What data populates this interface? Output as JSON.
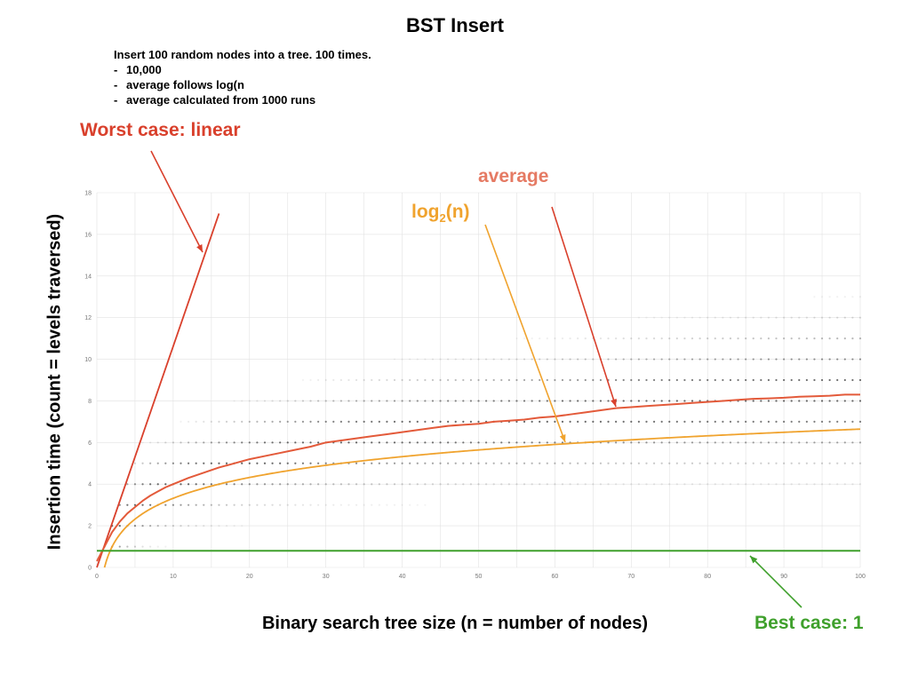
{
  "colors": {
    "linear": "#d9402c",
    "average": "#e35a3a",
    "log": "#f0a32e",
    "best": "#3fa02c",
    "grid": "#e2e2e2",
    "dots": "#333333"
  },
  "header": {
    "title": "BST Insert",
    "intro": "Insert 100 random nodes into a tree. 100 times.",
    "bullets": [
      "10,000",
      "average follows log(n",
      "average calculated from 1000 runs"
    ]
  },
  "annotations": {
    "worst": "Worst case: linear",
    "average": "average",
    "log_base": "log",
    "log_sub": "2",
    "log_arg": "(n)",
    "best": "Best case: 1"
  },
  "chart_data": {
    "type": "line",
    "xlabel": "Binary search tree size (n = number of nodes)",
    "ylabel": "Insertion time (count = levels traversed)",
    "xlim": [
      0,
      100
    ],
    "ylim": [
      0,
      18
    ],
    "xticks": [
      0,
      10,
      20,
      30,
      40,
      50,
      60,
      70,
      80,
      90,
      100
    ],
    "yticks": [
      0,
      2,
      4,
      6,
      8,
      10,
      12,
      14,
      16,
      18
    ],
    "grid": true,
    "series": [
      {
        "key": "linear",
        "x": [
          0,
          16
        ],
        "y": [
          0,
          17
        ]
      },
      {
        "key": "average",
        "x": [
          0,
          1,
          2,
          3,
          4,
          5,
          6,
          7,
          8,
          9,
          10,
          12,
          14,
          16,
          18,
          20,
          22,
          24,
          26,
          28,
          30,
          32,
          34,
          36,
          38,
          40,
          42,
          44,
          46,
          48,
          50,
          52,
          54,
          56,
          58,
          60,
          62,
          64,
          66,
          68,
          70,
          72,
          74,
          76,
          78,
          80,
          82,
          84,
          86,
          88,
          90,
          92,
          94,
          96,
          98,
          100
        ],
        "y": [
          0.3,
          1.0,
          1.7,
          2.2,
          2.6,
          2.9,
          3.2,
          3.45,
          3.65,
          3.85,
          4.0,
          4.3,
          4.55,
          4.8,
          5.0,
          5.2,
          5.35,
          5.5,
          5.65,
          5.8,
          6.0,
          6.1,
          6.2,
          6.3,
          6.4,
          6.5,
          6.6,
          6.7,
          6.8,
          6.85,
          6.9,
          7.0,
          7.05,
          7.1,
          7.2,
          7.25,
          7.35,
          7.45,
          7.55,
          7.65,
          7.7,
          7.75,
          7.8,
          7.85,
          7.9,
          7.95,
          8.0,
          8.05,
          8.1,
          8.12,
          8.15,
          8.2,
          8.22,
          8.25,
          8.3,
          8.3
        ]
      },
      {
        "key": "log",
        "function": "log2",
        "x_range": [
          1,
          100
        ]
      },
      {
        "key": "best",
        "x": [
          0,
          100
        ],
        "y": [
          0.8,
          0.8
        ]
      }
    ],
    "scatter": {
      "note": "faint dots at integer levels for each tree size",
      "levels": [
        1,
        2,
        3,
        4,
        5,
        6,
        7,
        8,
        9,
        10,
        11,
        12,
        13,
        14,
        15,
        16
      ]
    }
  }
}
